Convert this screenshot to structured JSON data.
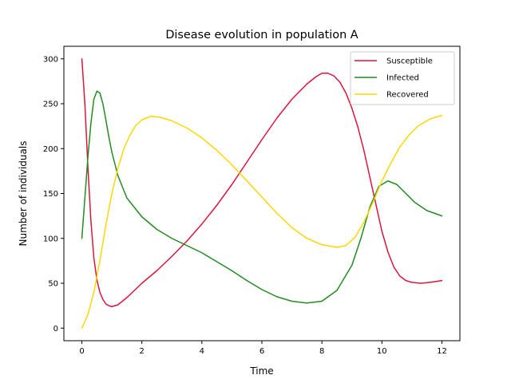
{
  "chart_data": {
    "type": "line",
    "title": "Disease evolution in population A",
    "xlabel": "Time",
    "ylabel": "Number of individuals",
    "xlim": [
      -0.6,
      12.6
    ],
    "ylim": [
      -14,
      314
    ],
    "xticks": [
      0,
      2,
      4,
      6,
      8,
      10,
      12
    ],
    "yticks": [
      0,
      50,
      100,
      150,
      200,
      250,
      300
    ],
    "grid": false,
    "legend_position": "top-right",
    "series": [
      {
        "name": "Susceptible",
        "color": "#DC143C",
        "points": [
          [
            0,
            300
          ],
          [
            0.1,
            250
          ],
          [
            0.2,
            180
          ],
          [
            0.3,
            120
          ],
          [
            0.4,
            78
          ],
          [
            0.5,
            54
          ],
          [
            0.6,
            40
          ],
          [
            0.7,
            32
          ],
          [
            0.8,
            27
          ],
          [
            0.9,
            25
          ],
          [
            1.0,
            24
          ],
          [
            1.2,
            26
          ],
          [
            1.5,
            34
          ],
          [
            2.0,
            50
          ],
          [
            2.5,
            64
          ],
          [
            3.0,
            80
          ],
          [
            3.5,
            97
          ],
          [
            4.0,
            116
          ],
          [
            4.5,
            137
          ],
          [
            5.0,
            160
          ],
          [
            5.5,
            185
          ],
          [
            6.0,
            210
          ],
          [
            6.5,
            234
          ],
          [
            7.0,
            255
          ],
          [
            7.5,
            272
          ],
          [
            7.8,
            280
          ],
          [
            8.0,
            284
          ],
          [
            8.2,
            284
          ],
          [
            8.4,
            281
          ],
          [
            8.6,
            274
          ],
          [
            8.8,
            262
          ],
          [
            9.0,
            245
          ],
          [
            9.2,
            224
          ],
          [
            9.4,
            198
          ],
          [
            9.6,
            168
          ],
          [
            9.8,
            138
          ],
          [
            10.0,
            108
          ],
          [
            10.2,
            85
          ],
          [
            10.4,
            68
          ],
          [
            10.6,
            58
          ],
          [
            10.8,
            53
          ],
          [
            11.0,
            51
          ],
          [
            11.3,
            50
          ],
          [
            11.6,
            51
          ],
          [
            12.0,
            53
          ]
        ]
      },
      {
        "name": "Infected",
        "color": "#228B22",
        "points": [
          [
            0,
            100
          ],
          [
            0.1,
            145
          ],
          [
            0.2,
            190
          ],
          [
            0.3,
            228
          ],
          [
            0.4,
            255
          ],
          [
            0.5,
            264
          ],
          [
            0.6,
            262
          ],
          [
            0.7,
            250
          ],
          [
            0.8,
            232
          ],
          [
            0.9,
            213
          ],
          [
            1.0,
            196
          ],
          [
            1.2,
            170
          ],
          [
            1.5,
            145
          ],
          [
            2.0,
            124
          ],
          [
            2.5,
            110
          ],
          [
            3.0,
            100
          ],
          [
            3.5,
            92
          ],
          [
            4.0,
            84
          ],
          [
            4.5,
            74
          ],
          [
            5.0,
            64
          ],
          [
            5.5,
            53
          ],
          [
            6.0,
            43
          ],
          [
            6.5,
            35
          ],
          [
            7.0,
            30
          ],
          [
            7.5,
            28
          ],
          [
            8.0,
            30
          ],
          [
            8.5,
            42
          ],
          [
            9.0,
            70
          ],
          [
            9.3,
            100
          ],
          [
            9.6,
            135
          ],
          [
            9.9,
            158
          ],
          [
            10.2,
            164
          ],
          [
            10.5,
            160
          ],
          [
            10.8,
            150
          ],
          [
            11.1,
            140
          ],
          [
            11.5,
            131
          ],
          [
            12.0,
            125
          ]
        ]
      },
      {
        "name": "Recovered",
        "color": "#FFD700",
        "points": [
          [
            0,
            0
          ],
          [
            0.2,
            15
          ],
          [
            0.4,
            40
          ],
          [
            0.6,
            75
          ],
          [
            0.8,
            115
          ],
          [
            1.0,
            150
          ],
          [
            1.2,
            178
          ],
          [
            1.4,
            200
          ],
          [
            1.6,
            215
          ],
          [
            1.8,
            226
          ],
          [
            2.0,
            232
          ],
          [
            2.3,
            236
          ],
          [
            2.6,
            235
          ],
          [
            3.0,
            231
          ],
          [
            3.5,
            223
          ],
          [
            4.0,
            212
          ],
          [
            4.5,
            198
          ],
          [
            5.0,
            182
          ],
          [
            5.5,
            164
          ],
          [
            6.0,
            146
          ],
          [
            6.5,
            128
          ],
          [
            7.0,
            112
          ],
          [
            7.5,
            100
          ],
          [
            8.0,
            93
          ],
          [
            8.5,
            90
          ],
          [
            8.8,
            92
          ],
          [
            9.1,
            101
          ],
          [
            9.4,
            118
          ],
          [
            9.7,
            140
          ],
          [
            10.0,
            164
          ],
          [
            10.3,
            184
          ],
          [
            10.6,
            202
          ],
          [
            10.9,
            215
          ],
          [
            11.2,
            225
          ],
          [
            11.6,
            233
          ],
          [
            12.0,
            237
          ]
        ]
      }
    ]
  }
}
